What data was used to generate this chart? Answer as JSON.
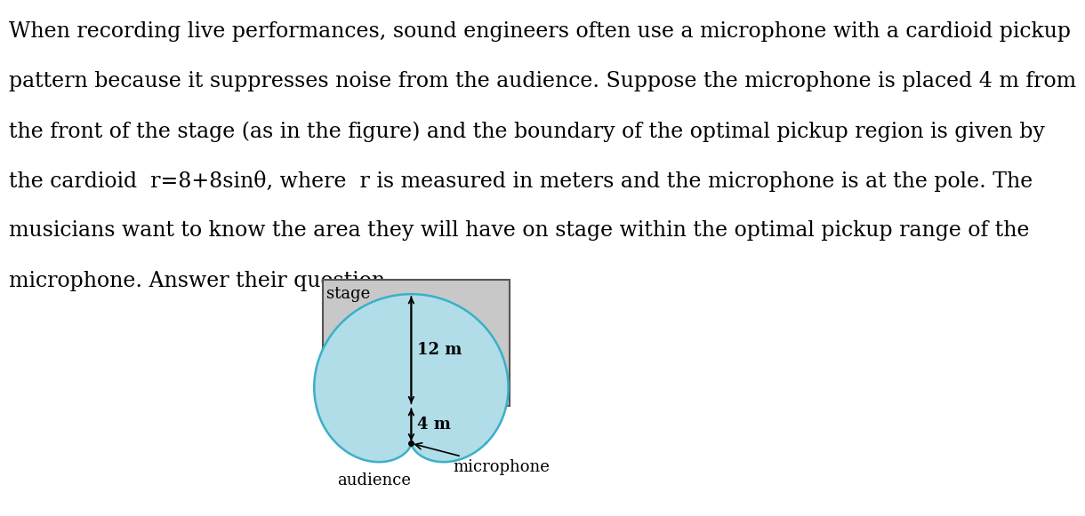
{
  "background_color": "#ffffff",
  "stage_fill": "#c8c8c8",
  "cardioid_fill": "#b0dde8",
  "cardioid_stroke": "#3ab0c8",
  "stage_border": "#555555",
  "text_color": "#000000",
  "font_size_text": 17,
  "font_size_diagram": 13,
  "stage_label": "stage",
  "audience_label": "audience",
  "microphone_label": "microphone",
  "label_12m": "12 m",
  "label_4m": "4 m",
  "lines": [
    "When recording live performances, sound engineers often use a microphone with a cardioid pickup",
    "pattern because it suppresses noise from the audience. Suppose the microphone is placed 4 m from",
    "the front of the stage (as in the figure) and the boundary of the optimal pickup region is given by",
    "the cardioid  r​=​8+8sinθ, where  r is measured in meters and the microphone is at the pole. The",
    "musicians want to know the area they will have on stage within the optimal pickup range of the",
    "microphone. Answer their question."
  ]
}
